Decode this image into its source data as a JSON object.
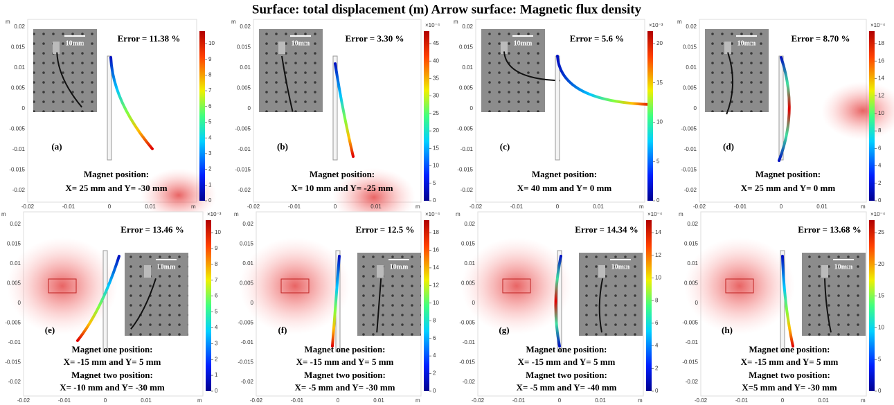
{
  "title": "Surface: total displacement (m) Arrow surface: Magnetic flux density",
  "axes": {
    "unit": "m",
    "yticks": [
      "0.02",
      "0.015",
      "0.01",
      "0.005",
      "0",
      "-0.005",
      "-0.01",
      "-0.015",
      "-0.02"
    ],
    "xticks": [
      "-0.02",
      "-0.01",
      "0",
      "0.01"
    ]
  },
  "scale_bar": "10mm",
  "panels": [
    {
      "label": "(a)",
      "error": "Error = 11.38 %",
      "magnet_text": [
        "Magnet position:",
        "X= 25 mm and Y= -30 mm"
      ],
      "colorbar": {
        "ticks": [
          "0",
          "1",
          "2",
          "3",
          "4",
          "5",
          "6",
          "7",
          "8",
          "9",
          "10"
        ]
      }
    },
    {
      "label": "(b)",
      "error": "Error = 3.30 %",
      "magnet_text": [
        "Magnet position:",
        "X= 10 mm and Y= -25 mm"
      ],
      "colorbar": {
        "exponent": "×10⁻⁴",
        "ticks": [
          "0",
          "5",
          "10",
          "15",
          "20",
          "25",
          "30",
          "35",
          "40",
          "45"
        ]
      }
    },
    {
      "label": "(c)",
      "error": "Error = 5.6 %",
      "magnet_text": [
        "Magnet position:",
        "X= 40 mm and Y= 0 mm"
      ],
      "colorbar": {
        "exponent": "×10⁻³",
        "ticks": [
          "0",
          "5",
          "10",
          "15",
          "20"
        ]
      }
    },
    {
      "label": "(d)",
      "error": "Error = 8.70 %",
      "magnet_text": [
        "Magnet position:",
        "X= 25 mm and Y= 0 mm"
      ],
      "colorbar": {
        "exponent": "×10⁻⁴",
        "ticks": [
          "0",
          "2",
          "4",
          "6",
          "8",
          "10",
          "12",
          "14",
          "16",
          "18"
        ]
      }
    },
    {
      "label": "(e)",
      "error": "Error = 13.46 %",
      "magnet_text": [
        "Magnet one position:",
        "X= -15 mm and Y= 5 mm",
        "Magnet two position:",
        "X= -10 mm and Y= -30 mm"
      ],
      "colorbar": {
        "exponent": "×10⁻³",
        "ticks": [
          "0",
          "1",
          "2",
          "3",
          "4",
          "5",
          "6",
          "7",
          "8",
          "9",
          "10"
        ]
      }
    },
    {
      "label": "(f)",
      "error": "Error = 12.5 %",
      "magnet_text": [
        "Magnet one position:",
        "X= -15 mm and Y= 5 mm",
        "Magnet two position:",
        "X= -5 mm and Y= -30 mm"
      ],
      "colorbar": {
        "exponent": "×10⁻⁴",
        "ticks": [
          "0",
          "2",
          "4",
          "6",
          "8",
          "10",
          "12",
          "14",
          "16",
          "18"
        ]
      }
    },
    {
      "label": "(g)",
      "error": "Error = 14.34 %",
      "magnet_text": [
        "Magnet one position:",
        "X= -15 mm and Y= 5 mm",
        "Magnet two position:",
        "X= -5 mm and Y= -40 mm"
      ],
      "colorbar": {
        "exponent": "×10⁻⁴",
        "ticks": [
          "0",
          "2",
          "4",
          "6",
          "8",
          "10",
          "12",
          "14"
        ]
      }
    },
    {
      "label": "(h)",
      "error": "Error = 13.68 %",
      "magnet_text": [
        "Magnet one position:",
        "X= -15 mm and Y= 5 mm",
        "Magnet two position:",
        "X=5 mm and Y= -30 mm"
      ],
      "colorbar": {
        "exponent": "×10⁻⁴",
        "ticks": [
          "0",
          "5",
          "10",
          "15",
          "20",
          "25"
        ]
      }
    }
  ]
}
